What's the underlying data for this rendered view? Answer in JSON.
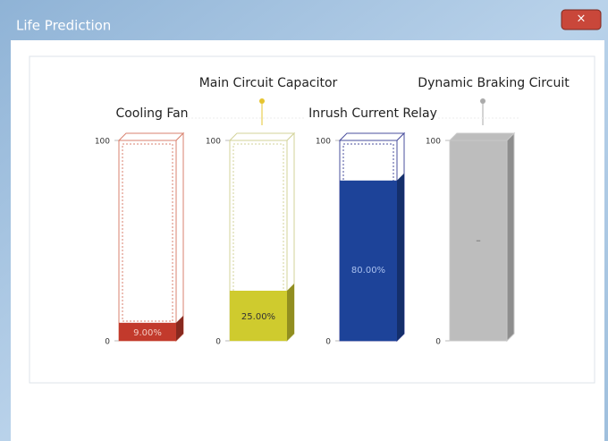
{
  "window": {
    "title": "Life Prediction"
  },
  "chart_data": {
    "type": "bar",
    "categories": [
      "Cooling Fan",
      "Main Circuit Capacitor",
      "Inrush Current Relay",
      "Dynamic Braking Circuit"
    ],
    "values": [
      9,
      25,
      80,
      null
    ],
    "value_labels": [
      "9.00%",
      "25.00%",
      "80.00%",
      "–"
    ],
    "colors": [
      "#c23a2c",
      "#cfcb2e",
      "#1d4399",
      "#bdbdbd"
    ],
    "outline_colors": [
      "#d9826f",
      "#d3d39a",
      "#4a4f9e",
      "#c8c8c8"
    ],
    "ylim": [
      0,
      100
    ],
    "yticks": [
      0,
      100
    ]
  }
}
